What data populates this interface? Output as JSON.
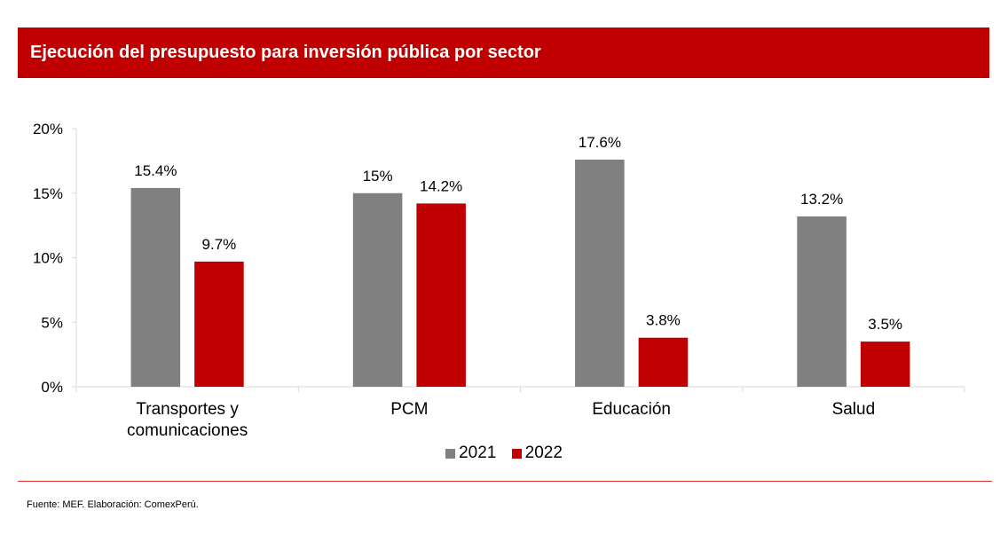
{
  "header": {
    "title": "Ejecución del presupuesto para inversión pública por sector"
  },
  "colors": {
    "title_bg": "#c00000",
    "series_2021": "#808080",
    "series_2022": "#c00000"
  },
  "chart_data": {
    "type": "bar",
    "title": "Ejecución del presupuesto para inversión pública por sector",
    "xlabel": "",
    "ylabel": "",
    "categories": [
      "Transportes y comunicaciones",
      "PCM",
      "Educación",
      "Salud"
    ],
    "category_lines": [
      [
        "Transportes y",
        "comunicaciones"
      ],
      [
        "PCM"
      ],
      [
        "Educación"
      ],
      [
        "Salud"
      ]
    ],
    "series": [
      {
        "name": "2021",
        "color": "#808080",
        "values": [
          15.4,
          15.0,
          17.6,
          13.2
        ],
        "labels": [
          "15.4%",
          "15%",
          "17.6%",
          "13.2%"
        ]
      },
      {
        "name": "2022",
        "color": "#c00000",
        "values": [
          9.7,
          14.2,
          3.8,
          3.5
        ],
        "labels": [
          "9.7%",
          "14.2%",
          "3.8%",
          "3.5%"
        ]
      }
    ],
    "ylim": [
      0,
      20
    ],
    "yticks": [
      0,
      5,
      10,
      15,
      20
    ],
    "ytick_labels": [
      "0%",
      "5%",
      "10%",
      "15%",
      "20%"
    ],
    "grid": false,
    "legend_position": "bottom"
  },
  "legend": {
    "items": [
      "2021",
      "2022"
    ]
  },
  "footer": {
    "source": "Fuente: MEF. Elaboración: ComexPerú."
  }
}
